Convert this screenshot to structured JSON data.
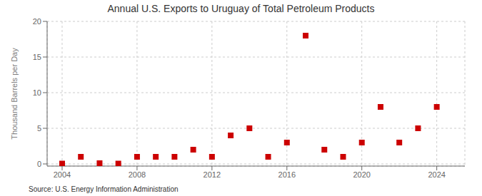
{
  "chart_data": {
    "type": "scatter",
    "title": "Annual U.S. Exports to Uruguay of Total Petroleum Products",
    "y_label": "Thousand Barrels per Day",
    "source": "Source: U.S. Energy Information Administration",
    "x": [
      2004,
      2005,
      2006,
      2007,
      2008,
      2009,
      2010,
      2011,
      2012,
      2013,
      2014,
      2015,
      2016,
      2017,
      2018,
      2019,
      2020,
      2021,
      2022,
      2023,
      2024
    ],
    "values": [
      0.05,
      1.0,
      0.1,
      0.05,
      1.0,
      1.0,
      1.0,
      2.0,
      1.0,
      4.0,
      5.0,
      1.0,
      3.0,
      18.0,
      2.0,
      1.0,
      3.0,
      8.0,
      3.0,
      5.0,
      8.0
    ],
    "color": "#cc0000",
    "marker": "square",
    "xlim": [
      2003.2,
      2025.5
    ],
    "ylim": [
      -0.3,
      20
    ],
    "xticks": [
      2004,
      2008,
      2012,
      2016,
      2020,
      2024
    ],
    "yticks": [
      0,
      5,
      10,
      15,
      20
    ],
    "grid": true
  }
}
